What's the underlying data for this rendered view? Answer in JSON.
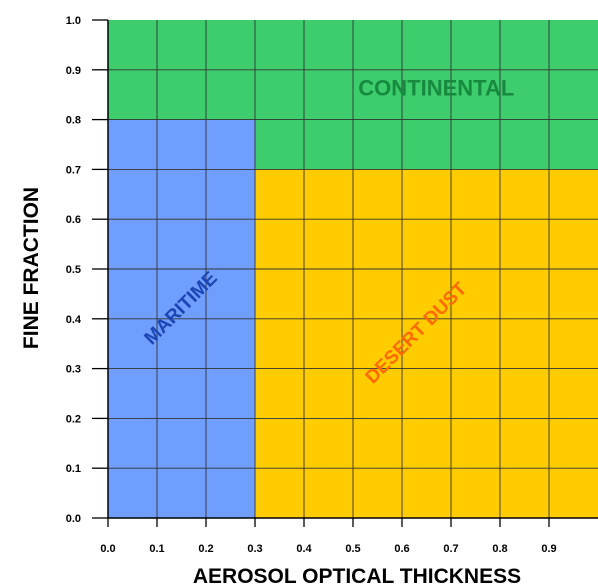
{
  "chart_data": {
    "type": "heatmap",
    "title": "",
    "xlabel": "AEROSOL OPTICAL THICKNESS",
    "ylabel": "FINE FRACTION",
    "xlim": [
      0.0,
      1.0
    ],
    "ylim": [
      0.0,
      1.0
    ],
    "x_ticks": [
      "0.0",
      "0.1",
      "0.2",
      "0.3",
      "0.4",
      "0.5",
      "0.6",
      "0.7",
      "0.8",
      "0.9"
    ],
    "y_ticks": [
      "0.0",
      "0.1",
      "0.2",
      "0.3",
      "0.4",
      "0.5",
      "0.6",
      "0.7",
      "0.8",
      "0.9",
      "1.0"
    ],
    "grid": true,
    "grid_step": 0.1,
    "regions": [
      {
        "name": "CONTINENTAL",
        "color": "#3dcd6d",
        "label_color": "#178a3f",
        "rects": [
          {
            "x": [
              0.0,
              1.0
            ],
            "y": [
              0.8,
              1.0
            ]
          },
          {
            "x": [
              0.3,
              1.0
            ],
            "y": [
              0.7,
              0.8
            ]
          }
        ],
        "label_at": {
          "x": 0.67,
          "y": 0.86
        },
        "label_rotation": 0
      },
      {
        "name": "MARITIME",
        "color": "#6f9eff",
        "label_color": "#1c46b4",
        "rects": [
          {
            "x": [
              0.0,
              0.3
            ],
            "y": [
              0.0,
              0.8
            ]
          }
        ],
        "label_at": {
          "x": 0.15,
          "y": 0.42
        },
        "label_rotation": -45
      },
      {
        "name": "DESERT DUST",
        "color": "#ffcc00",
        "label_color": "#ff6a00",
        "rects": [
          {
            "x": [
              0.3,
              1.0
            ],
            "y": [
              0.0,
              0.7
            ]
          }
        ],
        "label_at": {
          "x": 0.63,
          "y": 0.37
        },
        "label_rotation": -45
      }
    ],
    "grid_color": "#333333",
    "axis_color": "#000000"
  }
}
